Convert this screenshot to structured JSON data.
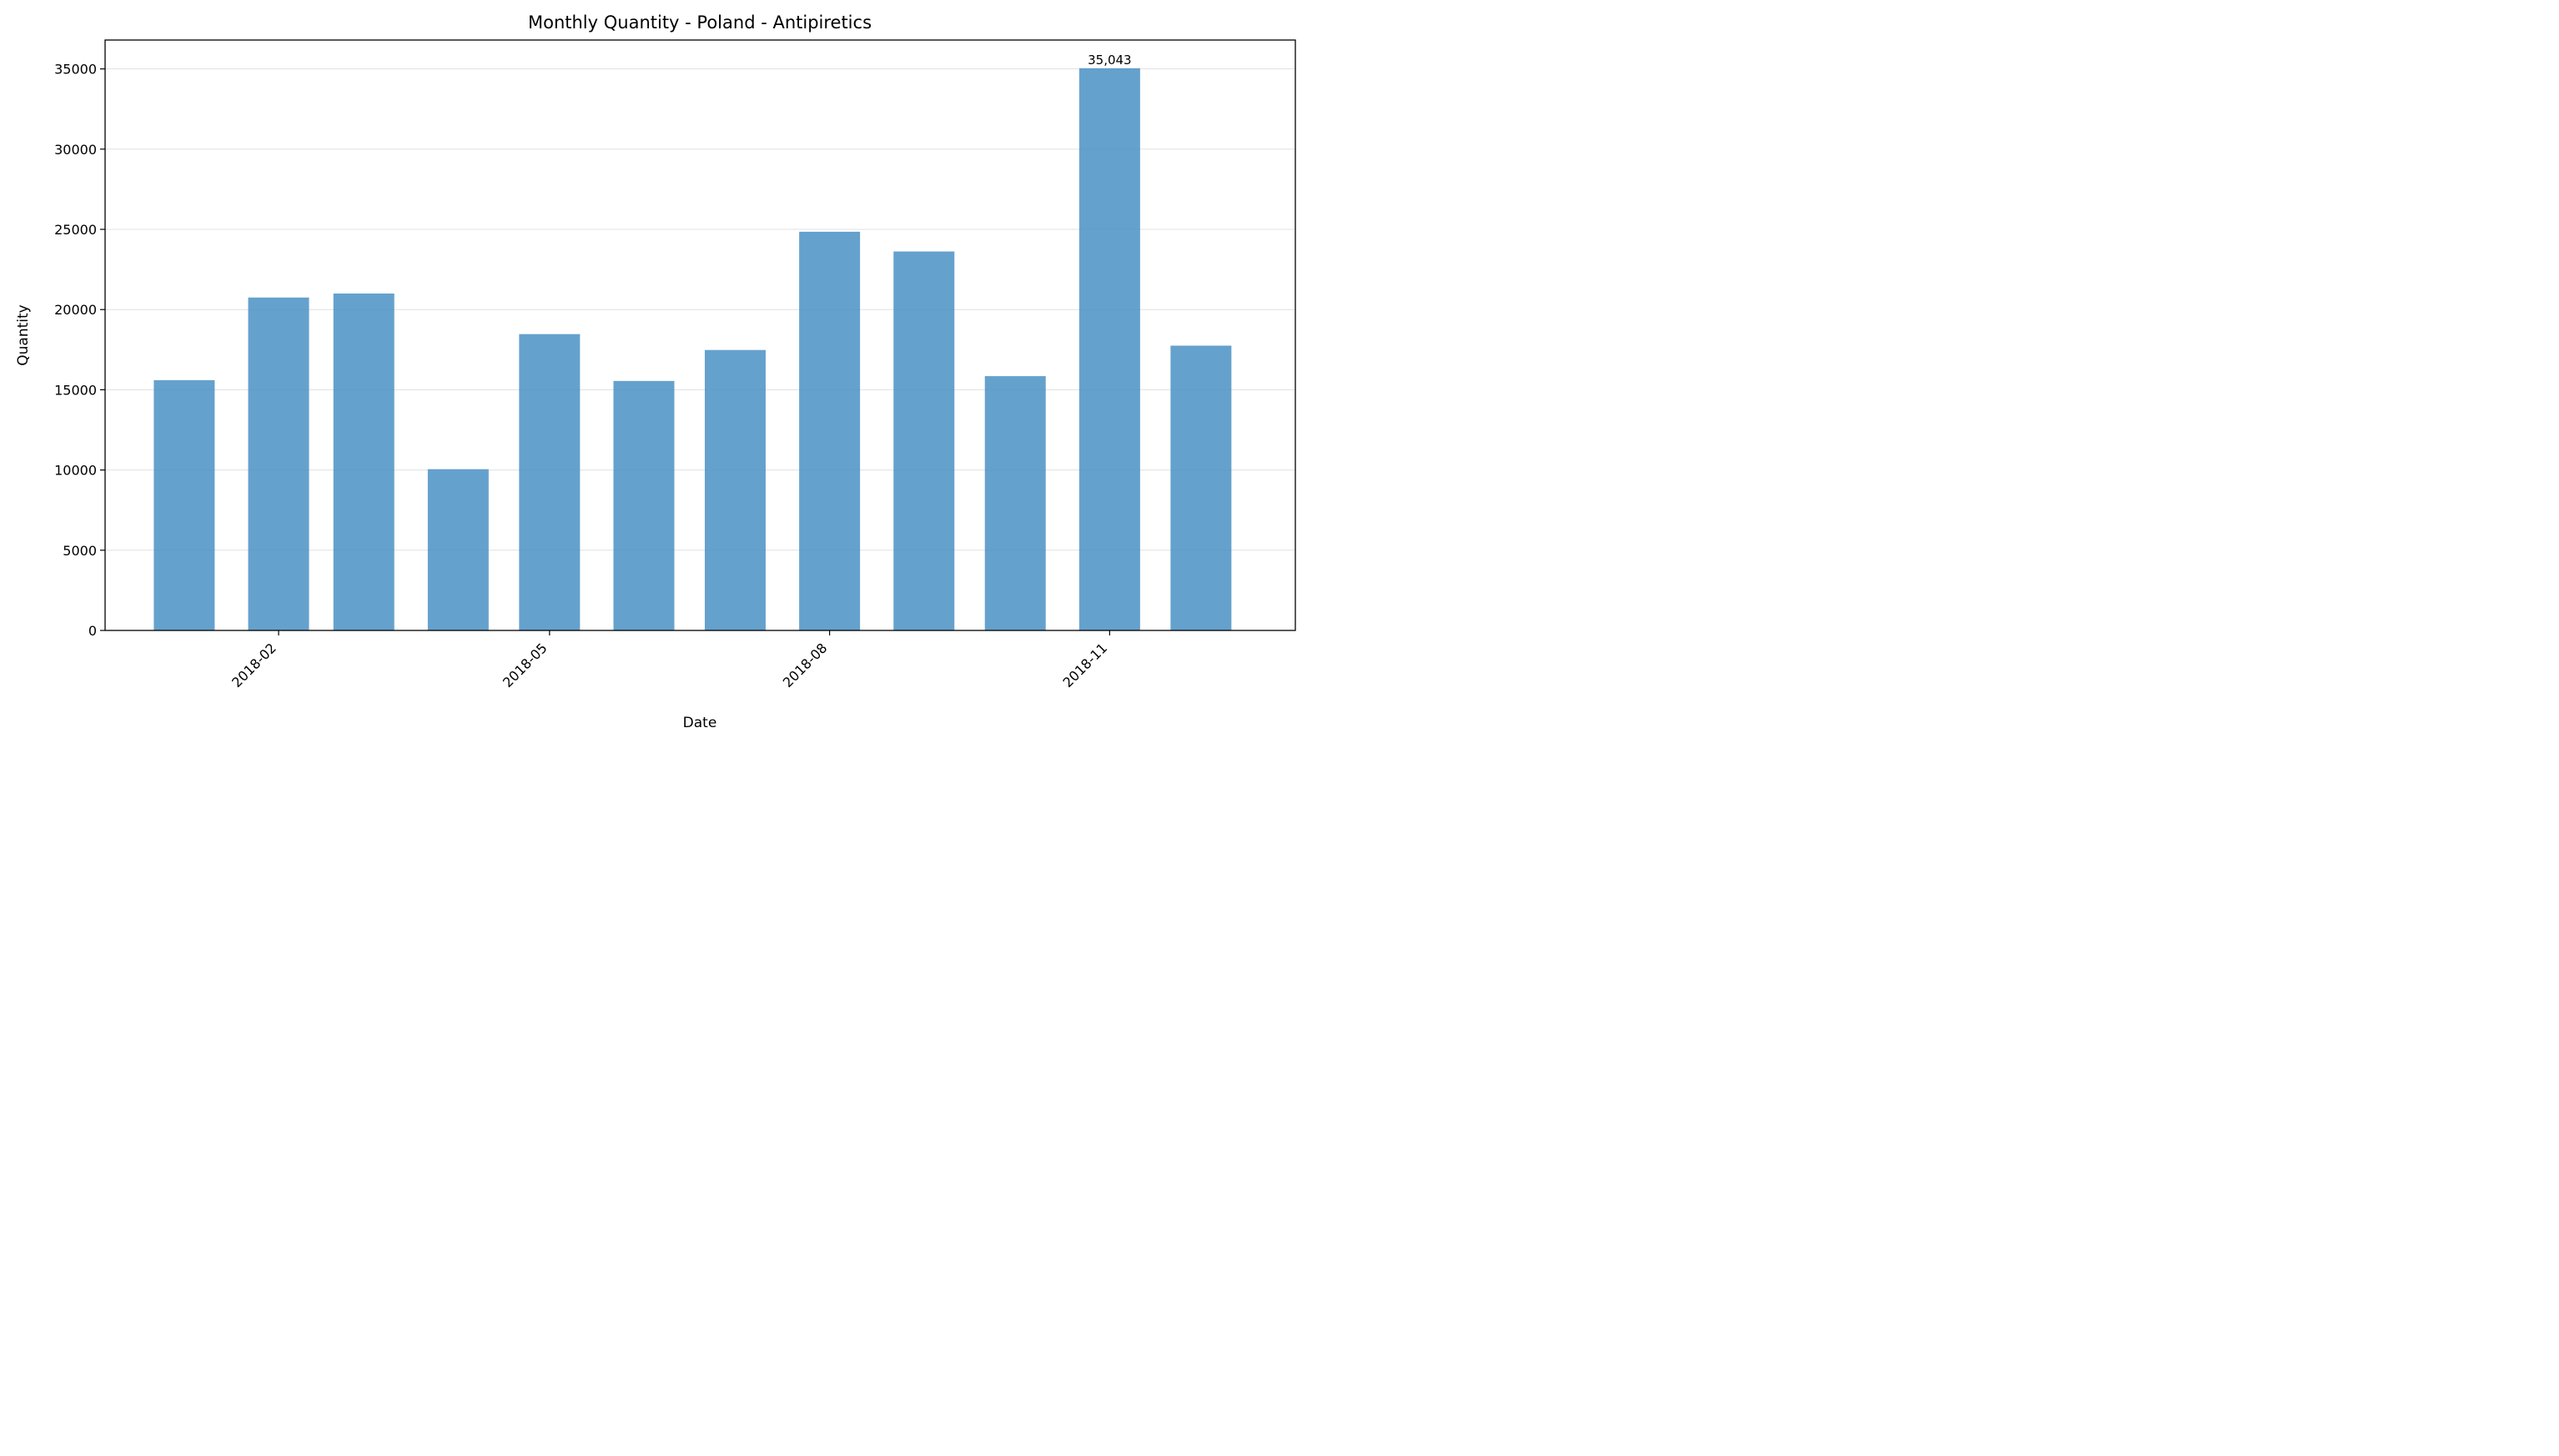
{
  "chart_data": {
    "type": "bar",
    "title": "Monthly Quantity - Poland - Antipiretics",
    "xlabel": "Date",
    "ylabel": "Quantity",
    "dates": [
      "2018-01-01",
      "2018-02-01",
      "2018-03-01",
      "2018-04-01",
      "2018-05-01",
      "2018-06-01",
      "2018-07-01",
      "2018-08-01",
      "2018-09-01",
      "2018-10-01",
      "2018-11-01",
      "2018-12-01"
    ],
    "values": [
      15600,
      20750,
      21000,
      10050,
      18470,
      15550,
      17480,
      24850,
      23620,
      15850,
      35043,
      17750
    ],
    "ylim": [
      0,
      36800
    ],
    "yticks": [
      0,
      5000,
      10000,
      15000,
      20000,
      25000,
      30000,
      35000
    ],
    "xticks": [
      "2018-02",
      "2018-05",
      "2018-08",
      "2018-11"
    ],
    "xlim": [
      "2017-12-06",
      "2019-01-01"
    ],
    "annotations": [
      {
        "date": "2018-11-01",
        "value": 35043,
        "text": "35,043"
      }
    ],
    "bar_color": "#4a90c4",
    "grid": "y",
    "legend": "none"
  }
}
